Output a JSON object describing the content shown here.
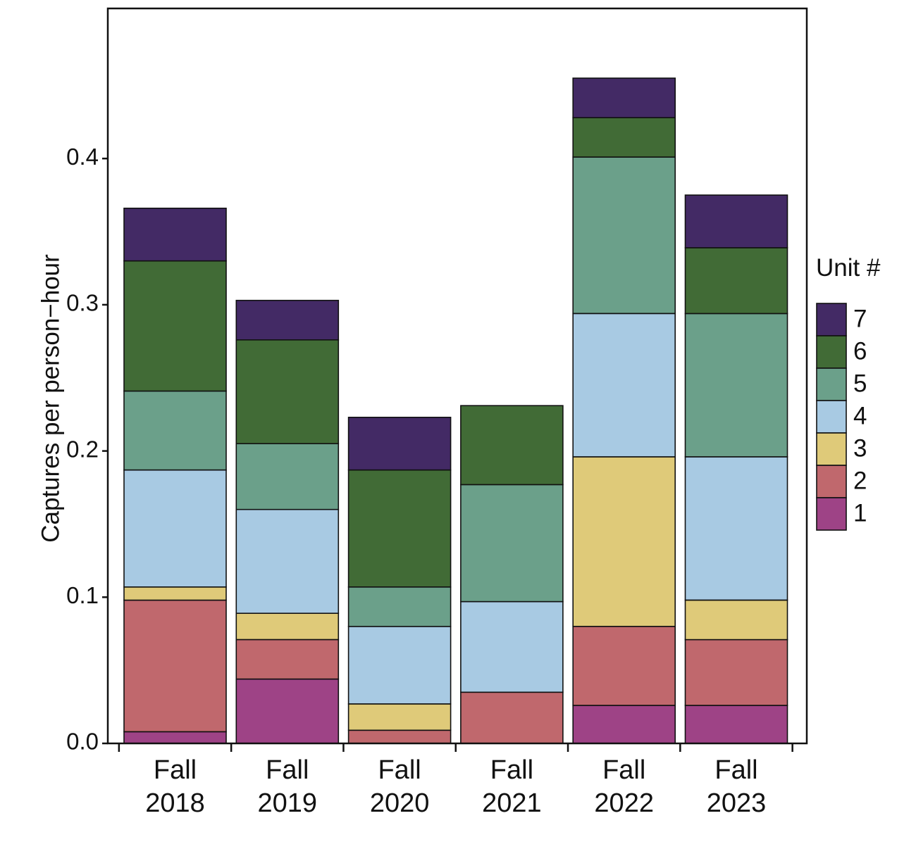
{
  "chart_data": {
    "type": "bar",
    "stacked": true,
    "title": "",
    "xlabel": "",
    "ylabel": "Captures per person−hour",
    "ylim": [
      0,
      0.5
    ],
    "yticks": [
      0.0,
      0.1,
      0.2,
      0.3,
      0.4
    ],
    "ytick_labels": [
      "0.0",
      "0.1",
      "0.2",
      "0.3",
      "0.4"
    ],
    "categories": [
      [
        "Fall",
        "2018"
      ],
      [
        "Fall",
        "2019"
      ],
      [
        "Fall",
        "2020"
      ],
      [
        "Fall",
        "2021"
      ],
      [
        "Fall",
        "2022"
      ],
      [
        "Fall",
        "2023"
      ]
    ],
    "legend_title": "Unit #",
    "legend_position": "right",
    "series": [
      {
        "name": "1",
        "color": "#9e4386",
        "values": [
          0.008,
          0.044,
          0.0,
          0.0,
          0.026,
          0.026
        ]
      },
      {
        "name": "2",
        "color": "#c0686d",
        "values": [
          0.09,
          0.027,
          0.009,
          0.035,
          0.054,
          0.045
        ]
      },
      {
        "name": "3",
        "color": "#dfca79",
        "values": [
          0.009,
          0.018,
          0.018,
          0.0,
          0.116,
          0.027
        ]
      },
      {
        "name": "4",
        "color": "#a8cae3",
        "values": [
          0.08,
          0.071,
          0.053,
          0.062,
          0.098,
          0.098
        ]
      },
      {
        "name": "5",
        "color": "#6ba08a",
        "values": [
          0.054,
          0.045,
          0.027,
          0.08,
          0.107,
          0.098
        ]
      },
      {
        "name": "6",
        "color": "#416b36",
        "values": [
          0.089,
          0.071,
          0.08,
          0.054,
          0.027,
          0.045
        ]
      },
      {
        "name": "7",
        "color": "#432a65",
        "values": [
          0.036,
          0.027,
          0.036,
          0.0,
          0.027,
          0.036
        ]
      }
    ]
  }
}
